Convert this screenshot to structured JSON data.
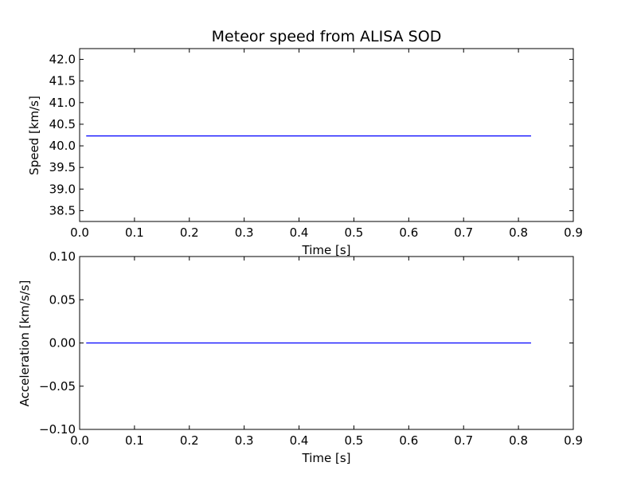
{
  "colors": {
    "line": "#0000ff",
    "axes": "#000000",
    "background": "#ffffff"
  },
  "chart_data": [
    {
      "type": "line",
      "title": "Meteor speed from  ALISA SOD",
      "xlabel": "Time [s]",
      "ylabel": "Speed [km/s]",
      "xlim": [
        0.0,
        0.9
      ],
      "ylim": [
        38.25,
        42.25
      ],
      "xticks": [
        0.0,
        0.1,
        0.2,
        0.3,
        0.4,
        0.5,
        0.6,
        0.7,
        0.8,
        0.9
      ],
      "xtick_labels": [
        "0.0",
        "0.1",
        "0.2",
        "0.3",
        "0.4",
        "0.5",
        "0.6",
        "0.7",
        "0.8",
        "0.9"
      ],
      "yticks": [
        38.5,
        39.0,
        39.5,
        40.0,
        40.5,
        41.0,
        41.5,
        42.0
      ],
      "ytick_labels": [
        "38.5",
        "39.0",
        "39.5",
        "40.0",
        "40.5",
        "41.0",
        "41.5",
        "42.0"
      ],
      "grid": false,
      "series": [
        {
          "x": [
            0.012,
            0.823
          ],
          "y": [
            40.23,
            40.23
          ]
        }
      ]
    },
    {
      "type": "line",
      "title": "",
      "xlabel": "Time [s]",
      "ylabel": "Acceleration [km/s/s]",
      "xlim": [
        0.0,
        0.9
      ],
      "ylim": [
        -0.1,
        0.1
      ],
      "xticks": [
        0.0,
        0.1,
        0.2,
        0.3,
        0.4,
        0.5,
        0.6,
        0.7,
        0.8,
        0.9
      ],
      "xtick_labels": [
        "0.0",
        "0.1",
        "0.2",
        "0.3",
        "0.4",
        "0.5",
        "0.6",
        "0.7",
        "0.8",
        "0.9"
      ],
      "yticks": [
        -0.1,
        -0.05,
        0.0,
        0.05,
        0.1
      ],
      "ytick_labels": [
        "−0.10",
        "−0.05",
        "0.00",
        "0.05",
        "0.10"
      ],
      "grid": false,
      "series": [
        {
          "x": [
            0.012,
            0.823
          ],
          "y": [
            0.0,
            0.0
          ]
        }
      ]
    }
  ]
}
